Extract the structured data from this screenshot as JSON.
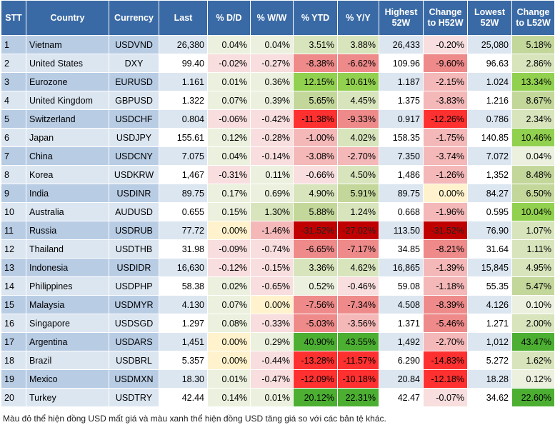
{
  "table": {
    "header": [
      "STT",
      "Country",
      "Currency",
      "Last",
      "% D/D",
      "% W/W",
      "% YTD",
      "% Y/Y",
      "Highest 52W",
      "Change to H52W",
      "Lowest 52W",
      "Change to L52W"
    ],
    "rows": [
      [
        "1",
        "Vietnam",
        "USDVND",
        "26,380",
        "0.04%",
        "0.04%",
        "3.51%",
        "3.88%",
        "26,433",
        "-0.20%",
        "25,080",
        "5.18%"
      ],
      [
        "2",
        "United States",
        "DXY",
        "99.40",
        "-0.02%",
        "-0.27%",
        "-8.38%",
        "-6.62%",
        "109.96",
        "-9.60%",
        "96.63",
        "2.86%"
      ],
      [
        "3",
        "Eurozone",
        "EURUSD",
        "1.161",
        "0.01%",
        "0.36%",
        "12.15%",
        "10.61%",
        "1.187",
        "-2.15%",
        "1.024",
        "13.34%"
      ],
      [
        "4",
        "United Kingdom",
        "GBPUSD",
        "1.322",
        "0.07%",
        "0.39%",
        "5.65%",
        "4.45%",
        "1.375",
        "-3.83%",
        "1.216",
        "8.67%"
      ],
      [
        "5",
        "Switzerland",
        "USDCHF",
        "0.804",
        "-0.06%",
        "-0.42%",
        "-11.38%",
        "-9.33%",
        "0.917",
        "-12.26%",
        "0.786",
        "2.34%"
      ],
      [
        "6",
        "Japan",
        "USDJPY",
        "155.61",
        "0.12%",
        "-0.28%",
        "-1.00%",
        "4.02%",
        "158.35",
        "-1.75%",
        "140.85",
        "10.46%"
      ],
      [
        "7",
        "China",
        "USDCNY",
        "7.075",
        "0.04%",
        "-0.14%",
        "-3.08%",
        "-2.70%",
        "7.350",
        "-3.74%",
        "7.072",
        "0.04%"
      ],
      [
        "8",
        "Korea",
        "USDKRW",
        "1,467",
        "-0.31%",
        "0.11%",
        "-0.66%",
        "4.50%",
        "1,486",
        "-1.26%",
        "1,352",
        "8.48%"
      ],
      [
        "9",
        "India",
        "USDINR",
        "89.75",
        "0.17%",
        "0.69%",
        "4.90%",
        "5.91%",
        "89.75",
        "0.00%",
        "84.27",
        "6.50%"
      ],
      [
        "10",
        "Australia",
        "AUDUSD",
        "0.655",
        "0.15%",
        "1.30%",
        "5.88%",
        "1.24%",
        "0.668",
        "-1.96%",
        "0.595",
        "10.04%"
      ],
      [
        "11",
        "Russia",
        "USDRUB",
        "77.72",
        "0.00%",
        "-1.46%",
        "-31.52%",
        "-27.02%",
        "113.50",
        "-31.52%",
        "76.90",
        "1.07%"
      ],
      [
        "12",
        "Thailand",
        "USDTHB",
        "31.98",
        "-0.09%",
        "-0.74%",
        "-6.65%",
        "-7.17%",
        "34.85",
        "-8.21%",
        "31.64",
        "1.11%"
      ],
      [
        "13",
        "Indonesia",
        "USDIDR",
        "16,630",
        "-0.12%",
        "-0.15%",
        "3.36%",
        "4.62%",
        "16,865",
        "-1.39%",
        "15,845",
        "4.95%"
      ],
      [
        "14",
        "Philippines",
        "USDPHP",
        "58.38",
        "0.02%",
        "-0.65%",
        "0.52%",
        "-0.46%",
        "59.08",
        "-1.18%",
        "55.35",
        "5.47%"
      ],
      [
        "15",
        "Malaysia",
        "USDMYR",
        "4.130",
        "0.07%",
        "0.00%",
        "-7.56%",
        "-7.34%",
        "4.508",
        "-8.39%",
        "4.126",
        "0.10%"
      ],
      [
        "16",
        "Singapore",
        "USDSGD",
        "1.297",
        "0.08%",
        "-0.33%",
        "-5.03%",
        "-3.56%",
        "1.371",
        "-5.46%",
        "1.271",
        "2.00%"
      ],
      [
        "17",
        "Argentina",
        "USDARS",
        "1,451",
        "0.00%",
        "0.29%",
        "40.90%",
        "43.55%",
        "1,492",
        "-2.70%",
        "1,012",
        "43.47%"
      ],
      [
        "18",
        "Brazil",
        "USDBRL",
        "5.357",
        "0.00%",
        "-0.44%",
        "-13.28%",
        "-11.57%",
        "6.290",
        "-14.83%",
        "5.272",
        "1.62%"
      ],
      [
        "19",
        "Mexico",
        "USDMXN",
        "18.30",
        "0.01%",
        "-0.47%",
        "-12.09%",
        "-10.18%",
        "20.84",
        "-12.18%",
        "18.28",
        "0.12%"
      ],
      [
        "20",
        "Turkey",
        "USDTRY",
        "42.44",
        "0.14%",
        "0.01%",
        "20.12%",
        "22.31%",
        "42.47",
        "-0.07%",
        "34.62",
        "22.60%"
      ]
    ]
  },
  "note": "Màu đỏ thể hiện đồng USD mất giá và màu xanh thể hiện đồng USD tăng giá so với các bản tệ khác."
}
